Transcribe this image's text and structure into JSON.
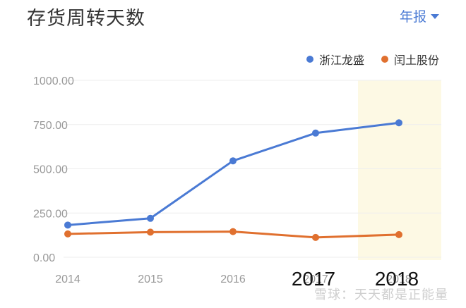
{
  "header": {
    "title": "存货周转天数",
    "period": "年报"
  },
  "colors": {
    "series1": "#4a7ad4",
    "series2": "#e0702f",
    "highlight": "#fdf9e4",
    "grid": "#eeeeee",
    "axis_text": "#999999"
  },
  "chart_data": {
    "type": "line",
    "x": [
      "2014",
      "2015",
      "2016",
      "2017",
      "2018"
    ],
    "highlight_category": "2018",
    "ylim": [
      0,
      1000
    ],
    "yticks": [
      "0.00",
      "250.00",
      "500.00",
      "750.00",
      "1000.00"
    ],
    "legend_position": "top-right",
    "grid": true,
    "series": [
      {
        "name": "浙江龙盛",
        "values": [
          182,
          220,
          545,
          702,
          760
        ]
      },
      {
        "name": "闰土股份",
        "values": [
          132,
          142,
          145,
          112,
          128
        ]
      }
    ],
    "annotations": [
      "2017",
      "2018"
    ]
  },
  "watermark": "雪球：天天都是正能量"
}
